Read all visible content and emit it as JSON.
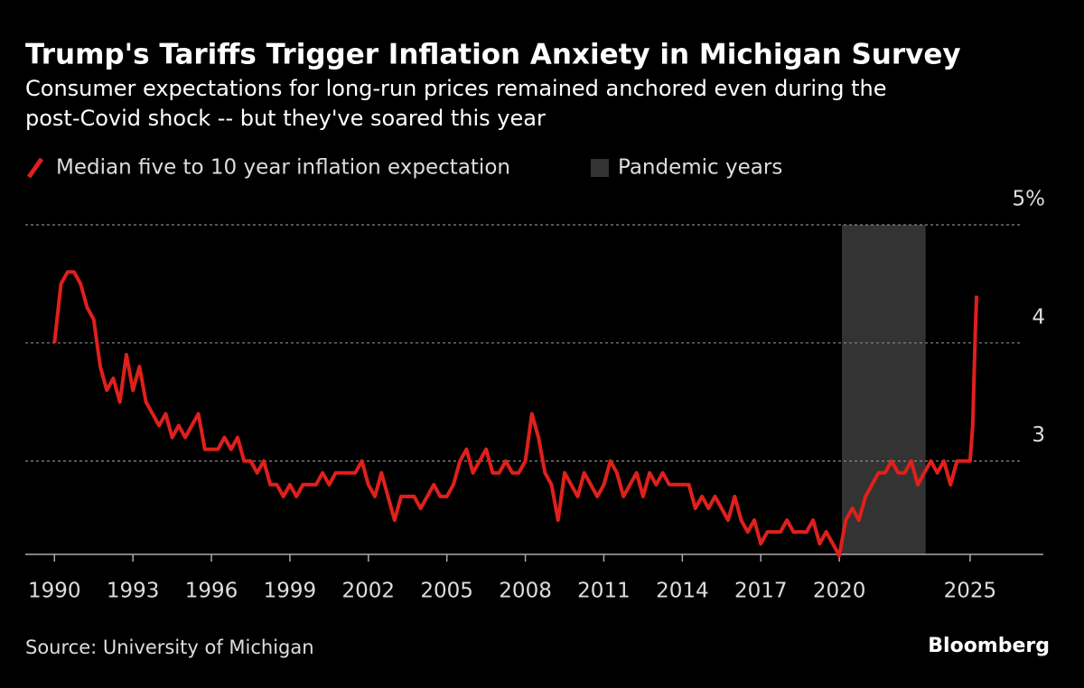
{
  "chart_data": {
    "type": "line",
    "title": "Trump's Tariffs Trigger Inflation Anxiety in Michigan Survey",
    "subtitle": [
      "Consumer expectations for long-run prices remained anchored even during the",
      "post-Covid shock -- but they've soared this year"
    ],
    "x": [
      1990,
      1990.25,
      1990.5,
      1990.75,
      1991,
      1991.25,
      1991.5,
      1991.75,
      1992,
      1992.25,
      1992.5,
      1992.75,
      1993,
      1993.25,
      1993.5,
      1993.75,
      1994,
      1994.25,
      1994.5,
      1994.75,
      1995,
      1995.25,
      1995.5,
      1995.75,
      1996,
      1996.25,
      1996.5,
      1996.75,
      1997,
      1997.25,
      1997.5,
      1997.75,
      1998,
      1998.25,
      1998.5,
      1998.75,
      1999,
      1999.25,
      1999.5,
      1999.75,
      2000,
      2000.25,
      2000.5,
      2000.75,
      2001,
      2001.25,
      2001.5,
      2001.75,
      2002,
      2002.25,
      2002.5,
      2002.75,
      2003,
      2003.25,
      2003.5,
      2003.75,
      2004,
      2004.25,
      2004.5,
      2004.75,
      2005,
      2005.25,
      2005.5,
      2005.75,
      2006,
      2006.25,
      2006.5,
      2006.75,
      2007,
      2007.25,
      2007.5,
      2007.75,
      2008,
      2008.25,
      2008.5,
      2008.75,
      2009,
      2009.25,
      2009.5,
      2009.75,
      2010,
      2010.25,
      2010.5,
      2010.75,
      2011,
      2011.25,
      2011.5,
      2011.75,
      2012,
      2012.25,
      2012.5,
      2012.75,
      2013,
      2013.25,
      2013.5,
      2013.75,
      2014,
      2014.25,
      2014.5,
      2014.75,
      2015,
      2015.25,
      2015.5,
      2015.75,
      2016,
      2016.25,
      2016.5,
      2016.75,
      2017,
      2017.25,
      2017.5,
      2017.75,
      2018,
      2018.25,
      2018.5,
      2018.75,
      2019,
      2019.25,
      2019.5,
      2019.75,
      2020,
      2020.25,
      2020.5,
      2020.75,
      2021,
      2021.25,
      2021.5,
      2021.75,
      2022,
      2022.25,
      2022.5,
      2022.75,
      2023,
      2023.25,
      2023.5,
      2023.75,
      2024,
      2024.25,
      2024.5,
      2024.75,
      2025,
      2025.1,
      2025.2,
      2025.25
    ],
    "series": [
      {
        "name": "Median five to 10 year inflation expectation",
        "color": "#e0201b",
        "values": [
          4.0,
          4.5,
          4.6,
          4.6,
          4.5,
          4.3,
          4.2,
          3.8,
          3.6,
          3.7,
          3.5,
          3.9,
          3.6,
          3.8,
          3.5,
          3.4,
          3.3,
          3.4,
          3.2,
          3.3,
          3.2,
          3.3,
          3.4,
          3.1,
          3.1,
          3.1,
          3.2,
          3.1,
          3.2,
          3.0,
          3.0,
          2.9,
          3.0,
          2.8,
          2.8,
          2.7,
          2.8,
          2.7,
          2.8,
          2.8,
          2.8,
          2.9,
          2.8,
          2.9,
          2.9,
          2.9,
          2.9,
          3.0,
          2.8,
          2.7,
          2.9,
          2.7,
          2.5,
          2.7,
          2.7,
          2.7,
          2.6,
          2.7,
          2.8,
          2.7,
          2.7,
          2.8,
          3.0,
          3.1,
          2.9,
          3.0,
          3.1,
          2.9,
          2.9,
          3.0,
          2.9,
          2.9,
          3.0,
          3.4,
          3.2,
          2.9,
          2.8,
          2.5,
          2.9,
          2.8,
          2.7,
          2.9,
          2.8,
          2.7,
          2.8,
          3.0,
          2.9,
          2.7,
          2.8,
          2.9,
          2.7,
          2.9,
          2.8,
          2.9,
          2.8,
          2.8,
          2.8,
          2.8,
          2.6,
          2.7,
          2.6,
          2.7,
          2.6,
          2.5,
          2.7,
          2.5,
          2.4,
          2.5,
          2.3,
          2.4,
          2.4,
          2.4,
          2.5,
          2.4,
          2.4,
          2.4,
          2.5,
          2.3,
          2.4,
          2.3,
          2.2,
          2.5,
          2.6,
          2.5,
          2.7,
          2.8,
          2.9,
          2.9,
          3.0,
          2.9,
          2.9,
          3.0,
          2.8,
          2.9,
          3.0,
          2.9,
          3.0,
          2.8,
          3.0,
          3.0,
          3.0,
          3.3,
          4.1,
          4.4
        ]
      }
    ],
    "pandemic": {
      "name": "Pandemic years",
      "color": "#333333",
      "x": [
        2020.1,
        2023.3
      ]
    },
    "xlim": [
      1989.3,
      2027.8
    ],
    "xticks": [
      1990,
      1993,
      1996,
      1999,
      2002,
      2005,
      2008,
      2011,
      2014,
      2017,
      2020,
      2025
    ],
    "ylim": [
      2.21,
      5
    ],
    "yticks": [
      {
        "value": 5,
        "label": "5%"
      },
      4,
      3
    ],
    "grid": true,
    "source": "Source: University of Michigan",
    "brand": "Bloomberg"
  }
}
